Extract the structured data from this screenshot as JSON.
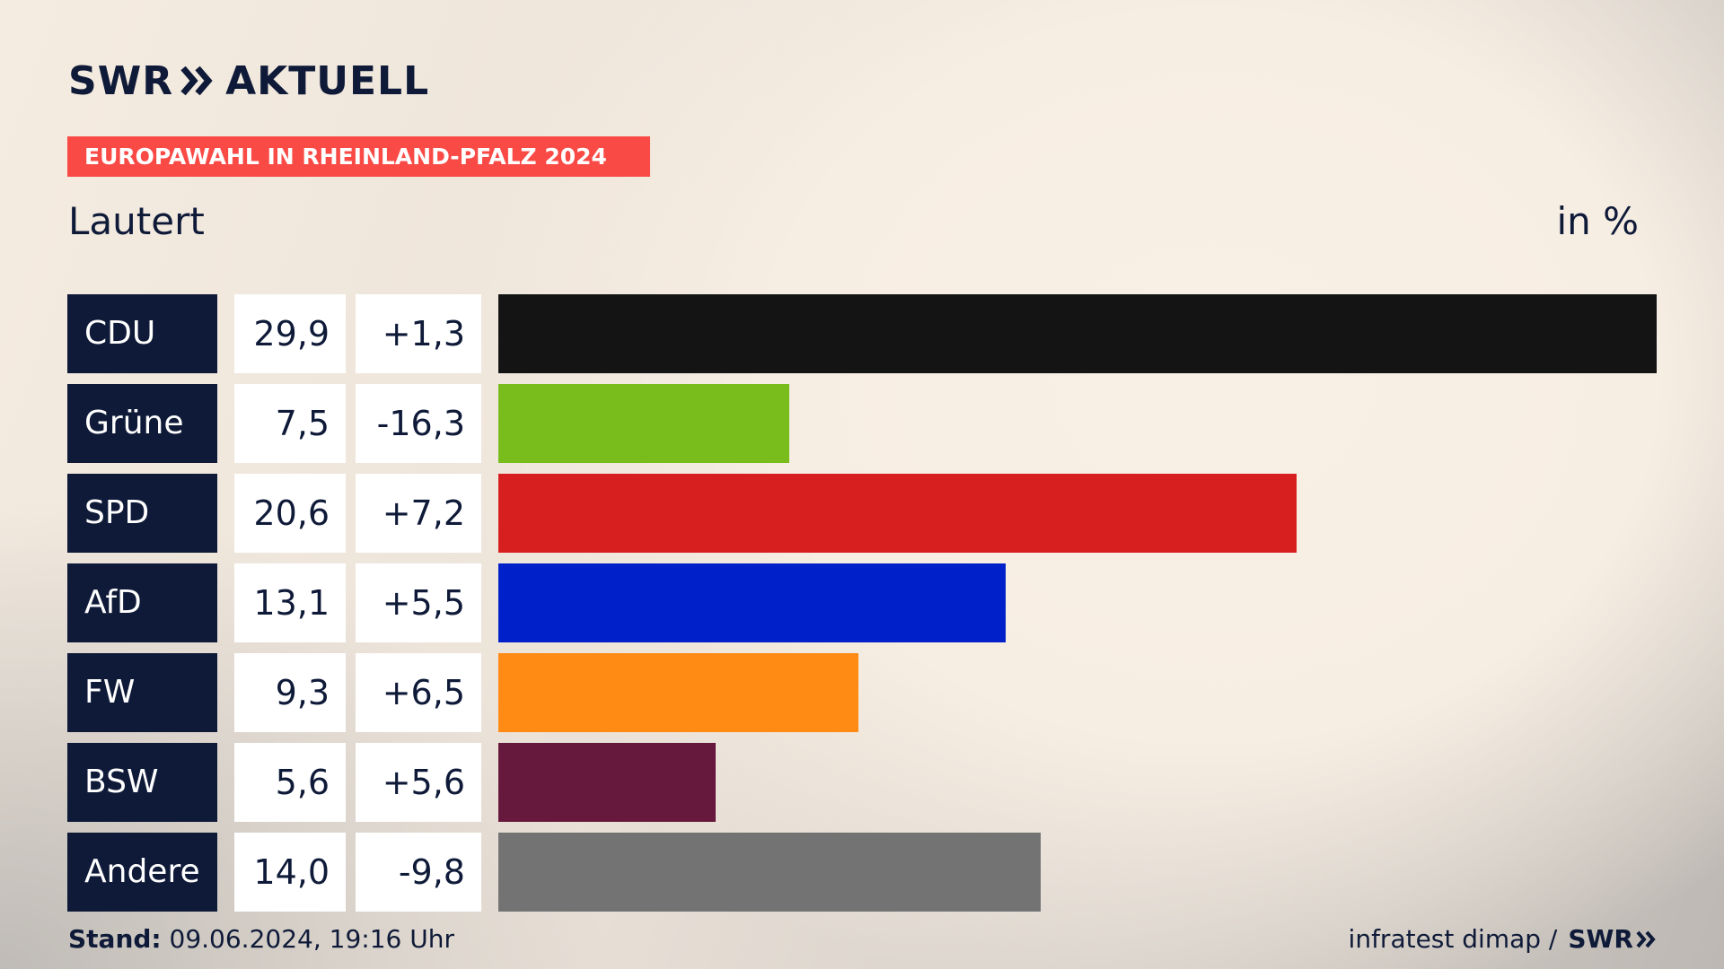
{
  "header": {
    "brand": "SWR",
    "brand_suffix": "AKTUELL",
    "tag": "EUROPAWAHL IN RHEINLAND-PFALZ 2024",
    "region": "Lautert",
    "unit": "in %"
  },
  "colors": {
    "navy": "#0e1a38",
    "tag_red": "#fa4a46"
  },
  "chart_data": {
    "type": "bar",
    "orientation": "horizontal",
    "title": "EUROPAWAHL IN RHEINLAND-PFALZ 2024",
    "subtitle": "Lautert",
    "unit": "in %",
    "categories": [
      "CDU",
      "Grüne",
      "SPD",
      "AfD",
      "FW",
      "BSW",
      "Andere"
    ],
    "values": [
      29.9,
      7.5,
      20.6,
      13.1,
      9.3,
      5.6,
      14.0
    ],
    "value_labels": [
      "29,9",
      "7,5",
      "20,6",
      "13,1",
      "9,3",
      "5,6",
      "14,0"
    ],
    "changes": [
      1.3,
      -16.3,
      7.2,
      5.5,
      6.5,
      5.6,
      -9.8
    ],
    "change_labels": [
      "+1,3",
      "-16,3",
      "+7,2",
      "+5,5",
      "+6,5",
      "+5,6",
      "-9,8"
    ],
    "bar_colors": [
      "#141414",
      "#79bd1d",
      "#d71f1f",
      "#0021c9",
      "#ff8a14",
      "#66193d",
      "#737373"
    ],
    "xlim": [
      0,
      29.9
    ]
  },
  "footer": {
    "stand_label": "Stand:",
    "stand_value": " 09.06.2024, 19:16 Uhr",
    "source": "infratest dimap /",
    "source_brand": "SWR"
  }
}
